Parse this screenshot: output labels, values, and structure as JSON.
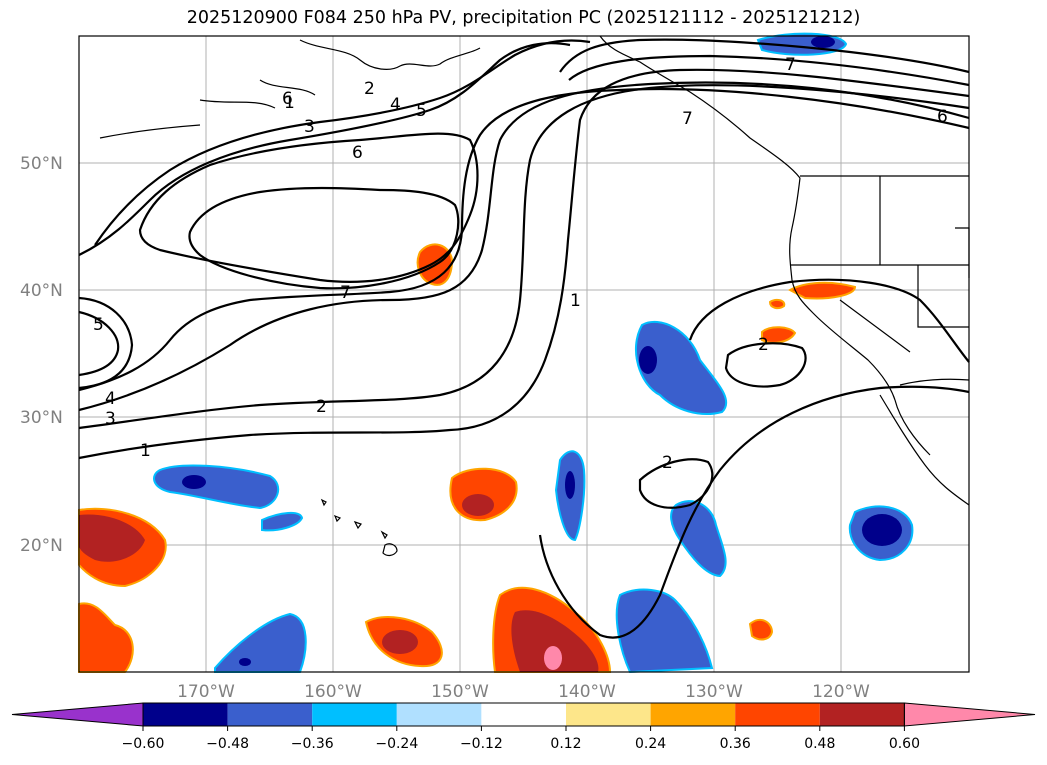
{
  "title": "2025120900 F084 250 hPa PV, precipitation PC (2025121112 - 2025121212)",
  "map": {
    "lon_labels": [
      "170°W",
      "160°W",
      "150°W",
      "140°W",
      "130°W",
      "120°W"
    ],
    "lat_labels": [
      "50°N",
      "40°N",
      "30°N",
      "20°N"
    ],
    "contour_labels": [
      "1",
      "2",
      "3",
      "4",
      "5",
      "6",
      "7",
      "1",
      "2",
      "3",
      "4",
      "5",
      "6",
      "7",
      "7",
      "6",
      "1",
      "2",
      "2"
    ]
  },
  "colorbar": {
    "ticks": [
      "−0.60",
      "−0.48",
      "−0.36",
      "−0.24",
      "−0.12",
      "0.12",
      "0.24",
      "0.36",
      "0.48",
      "0.60"
    ],
    "colors": [
      "#9932cc",
      "#00008b",
      "#3a5fcd",
      "#00bfff",
      "#b0e0ff",
      "#ffffff",
      "#fde68a",
      "#ffa500",
      "#ff4500",
      "#b22222",
      "#ff88aa"
    ]
  }
}
